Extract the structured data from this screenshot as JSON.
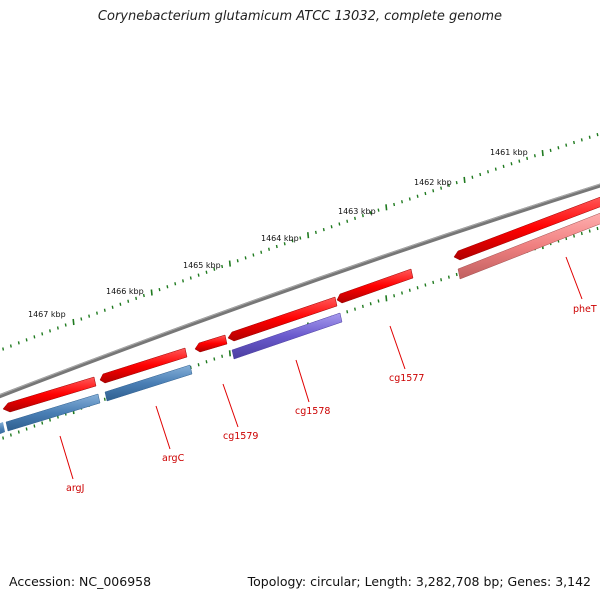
{
  "title": "Corynebacterium glutamicum ATCC 13032, complete genome",
  "footer": {
    "accession": "Accession: NC_006958",
    "summary": "Topology: circular; Length: 3,282,708 bp; Genes: 3,142"
  },
  "colors": {
    "backbone": "#777777",
    "ticks": "#1f7a1f",
    "forward_gene": "#ff0000",
    "pseudo_gene": "#f08080",
    "blue_feature": "#4a7fb5",
    "purple_feature": "#6a5acd",
    "label": "#cc0000"
  },
  "scale_labels": [
    "1461 kbp",
    "1462 kbp",
    "1463 kbp",
    "1464 kbp",
    "1465 kbp",
    "1466 kbp",
    "1467 kbp"
  ],
  "genes": [
    {
      "name": "argJ",
      "strand": "forward"
    },
    {
      "name": "argC",
      "strand": "forward"
    },
    {
      "name": "cg1579",
      "strand": "forward"
    },
    {
      "name": "cg1578",
      "strand": "forward"
    },
    {
      "name": "cg1577",
      "strand": "forward"
    },
    {
      "name": "pheT",
      "strand": "forward"
    }
  ]
}
